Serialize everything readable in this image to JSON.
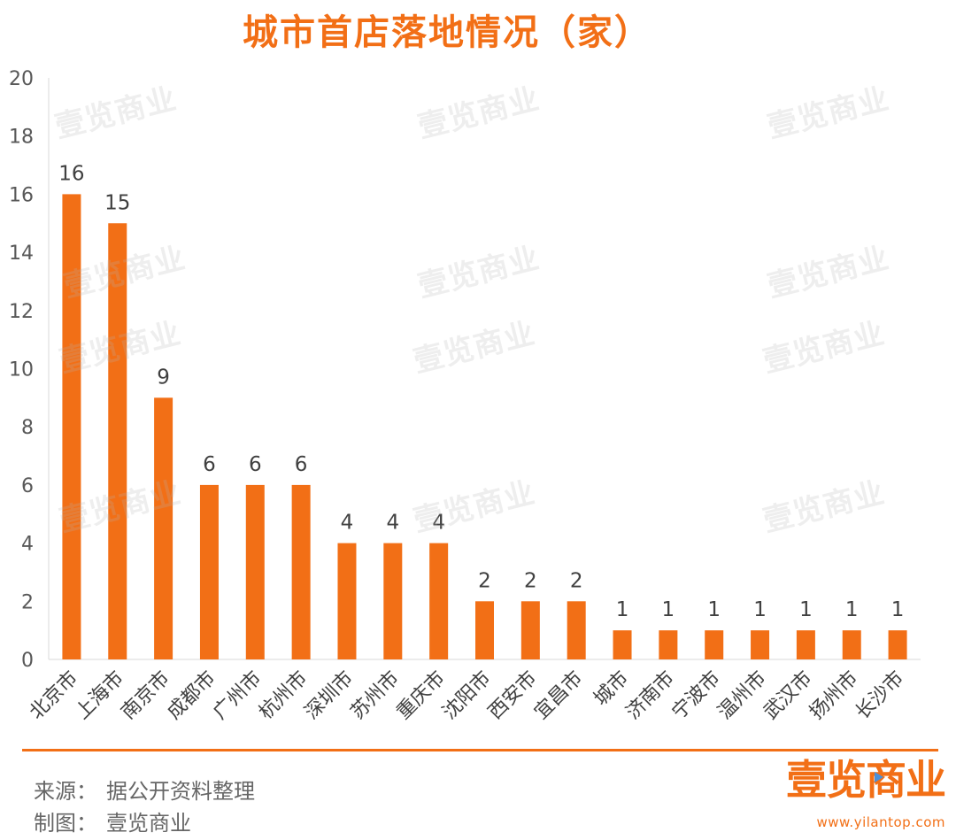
{
  "chart_data": {
    "type": "bar",
    "title": "城市首店落地情况（家）",
    "categories": [
      "北京市",
      "上海市",
      "南京市",
      "成都市",
      "广州市",
      "杭州市",
      "深圳市",
      "苏州市",
      "重庆市",
      "沈阳市",
      "西安市",
      "宜昌市",
      "城市",
      "济南市",
      "宁波市",
      "温州市",
      "武汉市",
      "扬州市",
      "长沙市"
    ],
    "values": [
      16,
      15,
      9,
      6,
      6,
      6,
      4,
      4,
      4,
      2,
      2,
      2,
      1,
      1,
      1,
      1,
      1,
      1,
      1
    ],
    "ylim": [
      0,
      20
    ],
    "yticks": [
      0,
      2,
      4,
      6,
      8,
      10,
      12,
      14,
      16,
      18,
      20
    ],
    "grid": false,
    "bar_color": "#f26f16",
    "data_labels": true
  },
  "watermark": "壹览商业",
  "footer": {
    "source_label": "来源：",
    "source_value": "据公开资料整理",
    "made_label": "制图：",
    "made_value": "壹览商业"
  },
  "brand": {
    "logo": "壹览商业",
    "url": "www.yilantop.com",
    "color": "#f26f16"
  }
}
